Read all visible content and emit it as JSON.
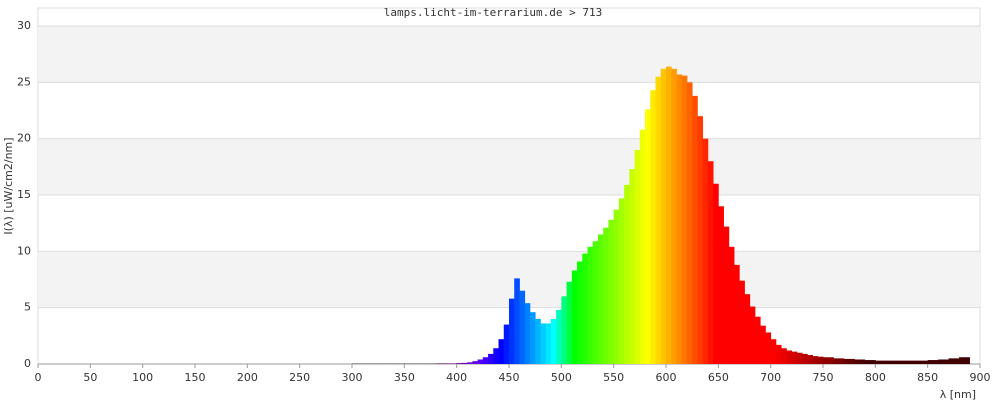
{
  "chart_data": {
    "type": "spectrum",
    "title": "lamps.licht-im-terrarium.de > 713",
    "x_label": "λ [nm]",
    "y_label": "I(λ)  [uW/cm2/nm]",
    "xlim": [
      0,
      900
    ],
    "ylim": [
      0,
      31.6
    ],
    "xticks": [
      0,
      50,
      100,
      150,
      200,
      250,
      300,
      350,
      400,
      450,
      500,
      550,
      600,
      650,
      700,
      750,
      800,
      850,
      900
    ],
    "yticks": [
      0,
      5,
      10,
      15,
      20,
      25,
      30
    ],
    "grid": true,
    "x": [
      300,
      310,
      320,
      330,
      340,
      350,
      360,
      370,
      380,
      390,
      400,
      405,
      410,
      415,
      420,
      425,
      430,
      435,
      440,
      445,
      450,
      455,
      460,
      465,
      470,
      475,
      480,
      485,
      490,
      495,
      500,
      505,
      510,
      515,
      520,
      525,
      530,
      535,
      540,
      545,
      550,
      555,
      560,
      565,
      570,
      575,
      580,
      585,
      590,
      595,
      600,
      605,
      610,
      615,
      620,
      625,
      630,
      635,
      640,
      645,
      650,
      655,
      660,
      665,
      670,
      675,
      680,
      685,
      690,
      695,
      700,
      705,
      710,
      715,
      720,
      725,
      730,
      735,
      740,
      745,
      750,
      760,
      770,
      780,
      790,
      800,
      810,
      820,
      830,
      840,
      850,
      860,
      870,
      880
    ],
    "values": [
      0.05,
      0.05,
      0.05,
      0.05,
      0.05,
      0.05,
      0.05,
      0.05,
      0.05,
      0.05,
      0.08,
      0.1,
      0.15,
      0.25,
      0.4,
      0.6,
      0.9,
      1.4,
      2.2,
      3.5,
      5.8,
      7.6,
      6.5,
      5.4,
      4.6,
      4.0,
      3.6,
      3.6,
      4.0,
      4.8,
      6.0,
      7.3,
      8.3,
      9.1,
      9.8,
      10.4,
      10.9,
      11.5,
      12.1,
      12.8,
      13.7,
      14.7,
      15.9,
      17.3,
      19.0,
      20.8,
      22.6,
      24.3,
      25.5,
      26.2,
      26.4,
      26.2,
      25.7,
      25.6,
      25.0,
      23.8,
      22.0,
      20.0,
      18.0,
      16.0,
      14.0,
      12.2,
      10.4,
      8.8,
      7.4,
      6.2,
      5.1,
      4.2,
      3.4,
      2.8,
      2.2,
      1.7,
      1.4,
      1.2,
      1.1,
      1.0,
      0.9,
      0.8,
      0.7,
      0.65,
      0.6,
      0.5,
      0.45,
      0.4,
      0.35,
      0.3,
      0.3,
      0.3,
      0.3,
      0.3,
      0.35,
      0.4,
      0.5,
      0.6
    ]
  }
}
